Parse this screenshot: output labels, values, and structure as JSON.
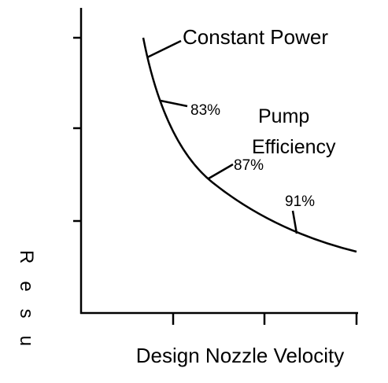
{
  "curve_label": "Constant Power",
  "efficiency_title": [
    "Pump",
    "Efficiency"
  ],
  "efficiency_marks": [
    "83%",
    "87%",
    "91%"
  ],
  "x_axis_label": "Design Nozzle Velocity",
  "y_axis_label": "Resu"
}
